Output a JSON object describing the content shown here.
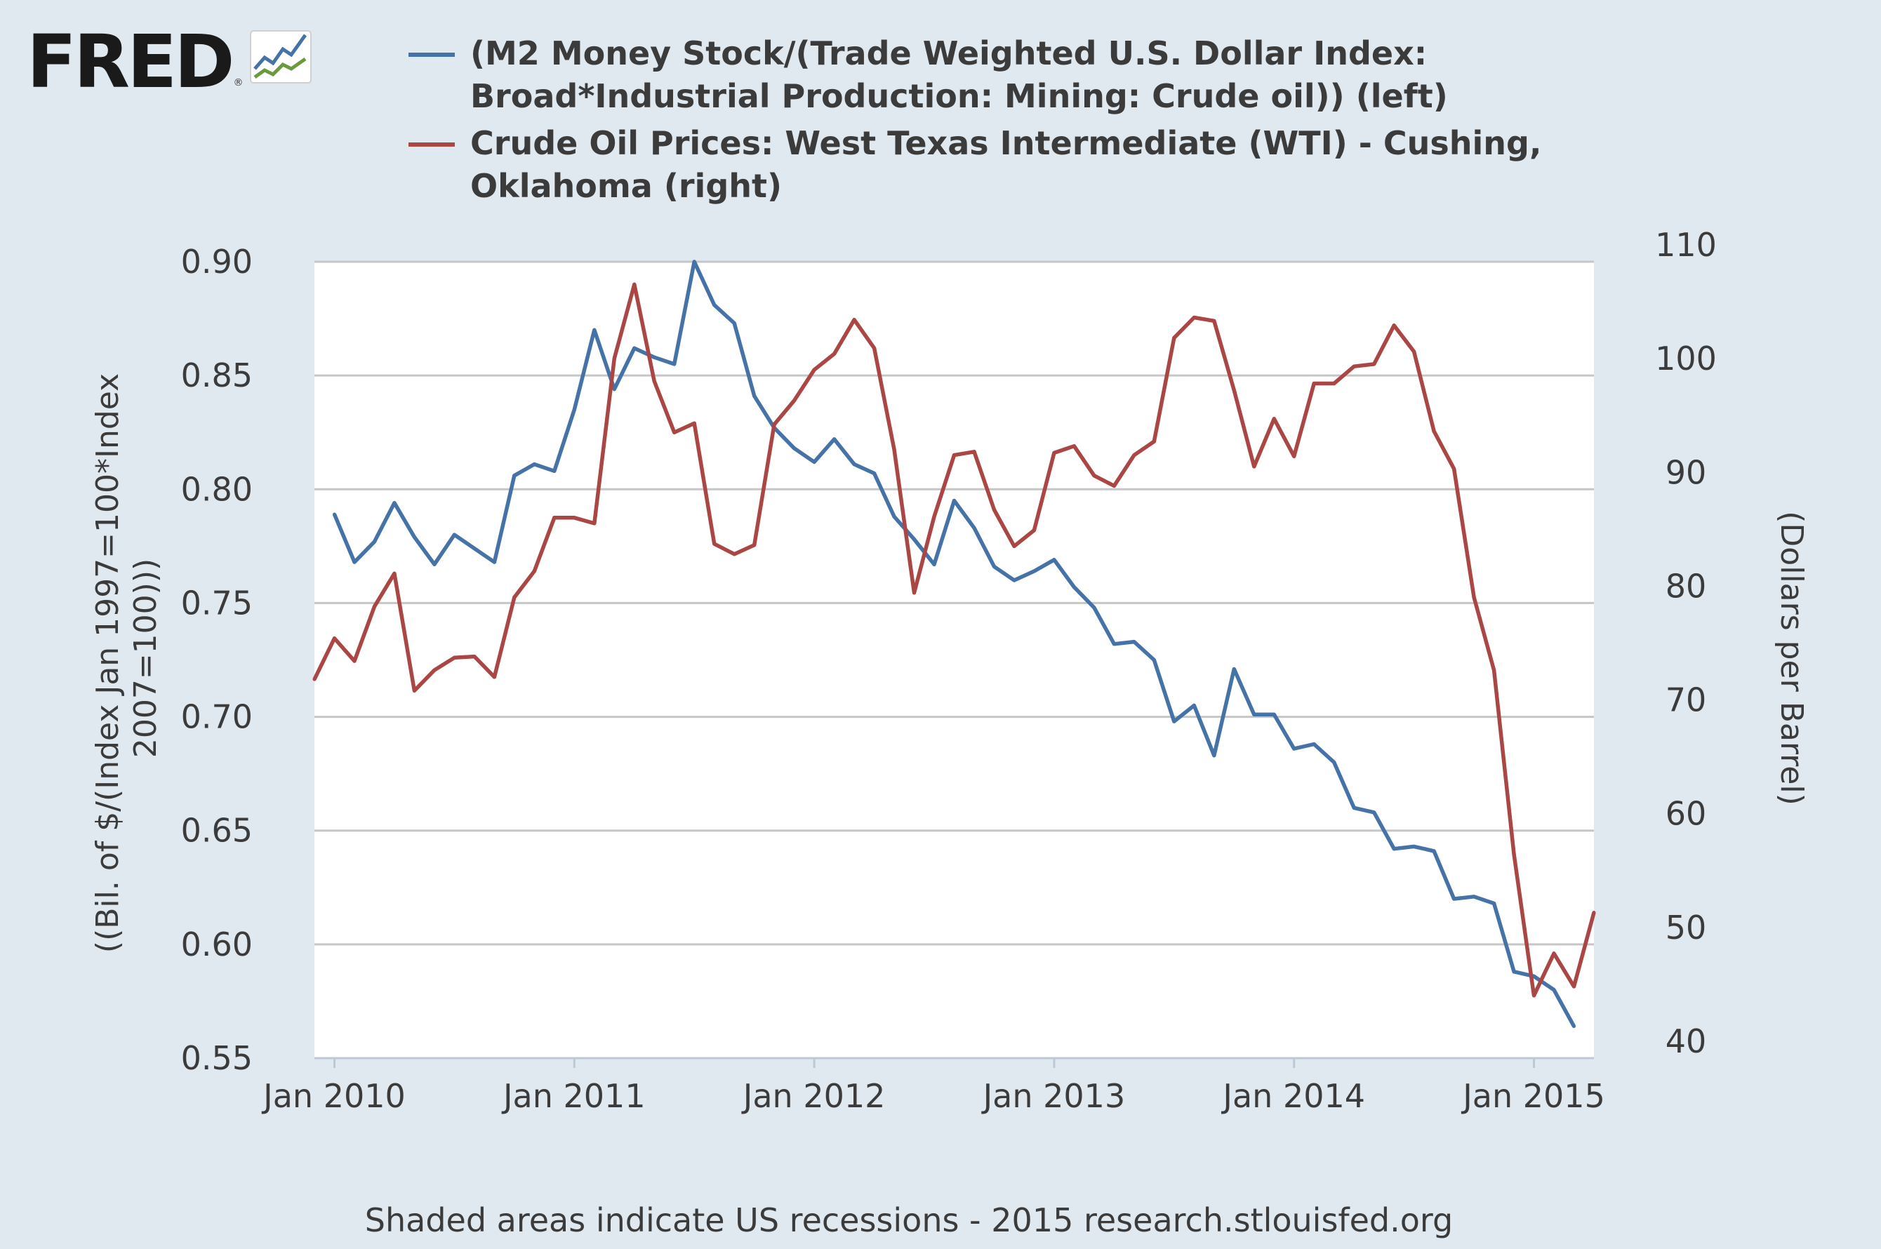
{
  "brand": {
    "name": "FRED",
    "registered": "®",
    "icon": "fred-chart-icon"
  },
  "colors": {
    "background": "#e1e9f0",
    "plot_background": "#ffffff",
    "gridline": "#c6c6c6",
    "series_m2": "#4572a7",
    "series_wti": "#aa4643",
    "text": "#3b3b3b"
  },
  "footer": {
    "text": "Shaded areas indicate US recessions - 2015 research.stlouisfed.org"
  },
  "chart_data": {
    "type": "line",
    "title": "",
    "xlabel": "",
    "ylabel_left": "((Bil. of $/(Index Jan 1997=100*Index 2007=100)))",
    "ylabel_left_lines": [
      "((Bil. of $/(Index Jan 1997=100*Index",
      "2007=100)))"
    ],
    "ylabel_right": "(Dollars per Barrel)",
    "grid": true,
    "legend_position": "top",
    "x_range": [
      "2009-12",
      "2015-04"
    ],
    "x_ticks": [
      "2010-01",
      "2011-01",
      "2012-01",
      "2013-01",
      "2014-01",
      "2015-01"
    ],
    "x_tick_labels": [
      "Jan 2010",
      "Jan 2011",
      "Jan 2012",
      "Jan 2013",
      "Jan 2014",
      "Jan 2015"
    ],
    "ylim_left": [
      0.55,
      0.9
    ],
    "y_ticks_left": [
      "0.55",
      "0.60",
      "0.65",
      "0.70",
      "0.75",
      "0.80",
      "0.85",
      "0.90"
    ],
    "ylim_right": [
      40,
      110
    ],
    "y_ticks_right": [
      "40",
      "50",
      "60",
      "70",
      "80",
      "90",
      "100",
      "110"
    ],
    "series": [
      {
        "name": "(M2 Money Stock/(Trade Weighted U.S. Dollar Index: Broad*Industrial Production: Mining: Crude oil)) (left)",
        "axis": "left",
        "color": "#4572a7",
        "x": [
          "2010-01",
          "2010-02",
          "2010-03",
          "2010-04",
          "2010-05",
          "2010-06",
          "2010-07",
          "2010-08",
          "2010-09",
          "2010-10",
          "2010-11",
          "2010-12",
          "2011-01",
          "2011-02",
          "2011-03",
          "2011-04",
          "2011-05",
          "2011-06",
          "2011-07",
          "2011-08",
          "2011-09",
          "2011-10",
          "2011-11",
          "2011-12",
          "2012-01",
          "2012-02",
          "2012-03",
          "2012-04",
          "2012-05",
          "2012-06",
          "2012-07",
          "2012-08",
          "2012-09",
          "2012-10",
          "2012-11",
          "2012-12",
          "2013-01",
          "2013-02",
          "2013-03",
          "2013-04",
          "2013-05",
          "2013-06",
          "2013-07",
          "2013-08",
          "2013-09",
          "2013-10",
          "2013-11",
          "2013-12",
          "2014-01",
          "2014-02",
          "2014-03",
          "2014-04",
          "2014-05",
          "2014-06",
          "2014-07",
          "2014-08",
          "2014-09",
          "2014-10",
          "2014-11",
          "2014-12",
          "2015-01",
          "2015-02",
          "2015-03"
        ],
        "values": [
          0.789,
          0.768,
          0.777,
          0.794,
          0.779,
          0.767,
          0.78,
          0.774,
          0.768,
          0.806,
          0.811,
          0.808,
          0.835,
          0.87,
          0.844,
          0.862,
          0.858,
          0.855,
          0.9,
          0.881,
          0.873,
          0.841,
          0.827,
          0.818,
          0.812,
          0.822,
          0.811,
          0.807,
          0.788,
          0.778,
          0.767,
          0.795,
          0.783,
          0.766,
          0.76,
          0.764,
          0.769,
          0.757,
          0.748,
          0.732,
          0.733,
          0.725,
          0.698,
          0.705,
          0.683,
          0.721,
          0.701,
          0.701,
          0.686,
          0.688,
          0.68,
          0.66,
          0.658,
          0.642,
          0.643,
          0.641,
          0.62,
          0.621,
          0.618,
          0.588,
          0.586,
          0.58,
          0.564
        ]
      },
      {
        "name": "Crude Oil Prices: West Texas Intermediate (WTI) - Cushing, Oklahoma (right)",
        "axis": "right",
        "color": "#aa4643",
        "x": [
          "2009-12",
          "2010-01",
          "2010-02",
          "2010-03",
          "2010-04",
          "2010-05",
          "2010-06",
          "2010-07",
          "2010-08",
          "2010-09",
          "2010-10",
          "2010-11",
          "2010-12",
          "2011-01",
          "2011-02",
          "2011-03",
          "2011-04",
          "2011-05",
          "2011-06",
          "2011-07",
          "2011-08",
          "2011-09",
          "2011-10",
          "2011-11",
          "2011-12",
          "2012-01",
          "2012-02",
          "2012-03",
          "2012-04",
          "2012-05",
          "2012-06",
          "2012-07",
          "2012-08",
          "2012-09",
          "2012-10",
          "2012-11",
          "2012-12",
          "2013-01",
          "2013-02",
          "2013-03",
          "2013-04",
          "2013-05",
          "2013-06",
          "2013-07",
          "2013-08",
          "2013-09",
          "2013-10",
          "2013-11",
          "2013-12",
          "2014-01",
          "2014-02",
          "2014-03",
          "2014-04",
          "2014-05",
          "2014-06",
          "2014-07",
          "2014-08",
          "2014-09",
          "2014-10",
          "2014-11",
          "2014-12",
          "2015-01",
          "2015-02",
          "2015-03",
          "2015-04"
        ],
        "values": [
          73.3,
          76.9,
          74.9,
          79.7,
          82.6,
          72.3,
          74.1,
          75.2,
          75.3,
          73.5,
          80.5,
          82.8,
          87.5,
          87.5,
          87.0,
          101.5,
          108.0,
          99.5,
          95.0,
          95.8,
          85.2,
          84.3,
          85.1,
          95.7,
          97.8,
          100.5,
          101.9,
          104.9,
          102.4,
          93.5,
          80.9,
          87.6,
          93.0,
          93.3,
          88.2,
          85.0,
          86.4,
          93.2,
          93.8,
          91.2,
          90.3,
          93.0,
          94.2,
          103.3,
          105.1,
          104.8,
          98.7,
          92.0,
          96.2,
          92.9,
          99.3,
          99.3,
          100.8,
          101.0,
          104.4,
          102.1,
          95.1,
          91.8,
          80.5,
          74.1,
          57.9,
          45.5,
          49.2,
          46.3,
          52.8
        ]
      }
    ]
  }
}
